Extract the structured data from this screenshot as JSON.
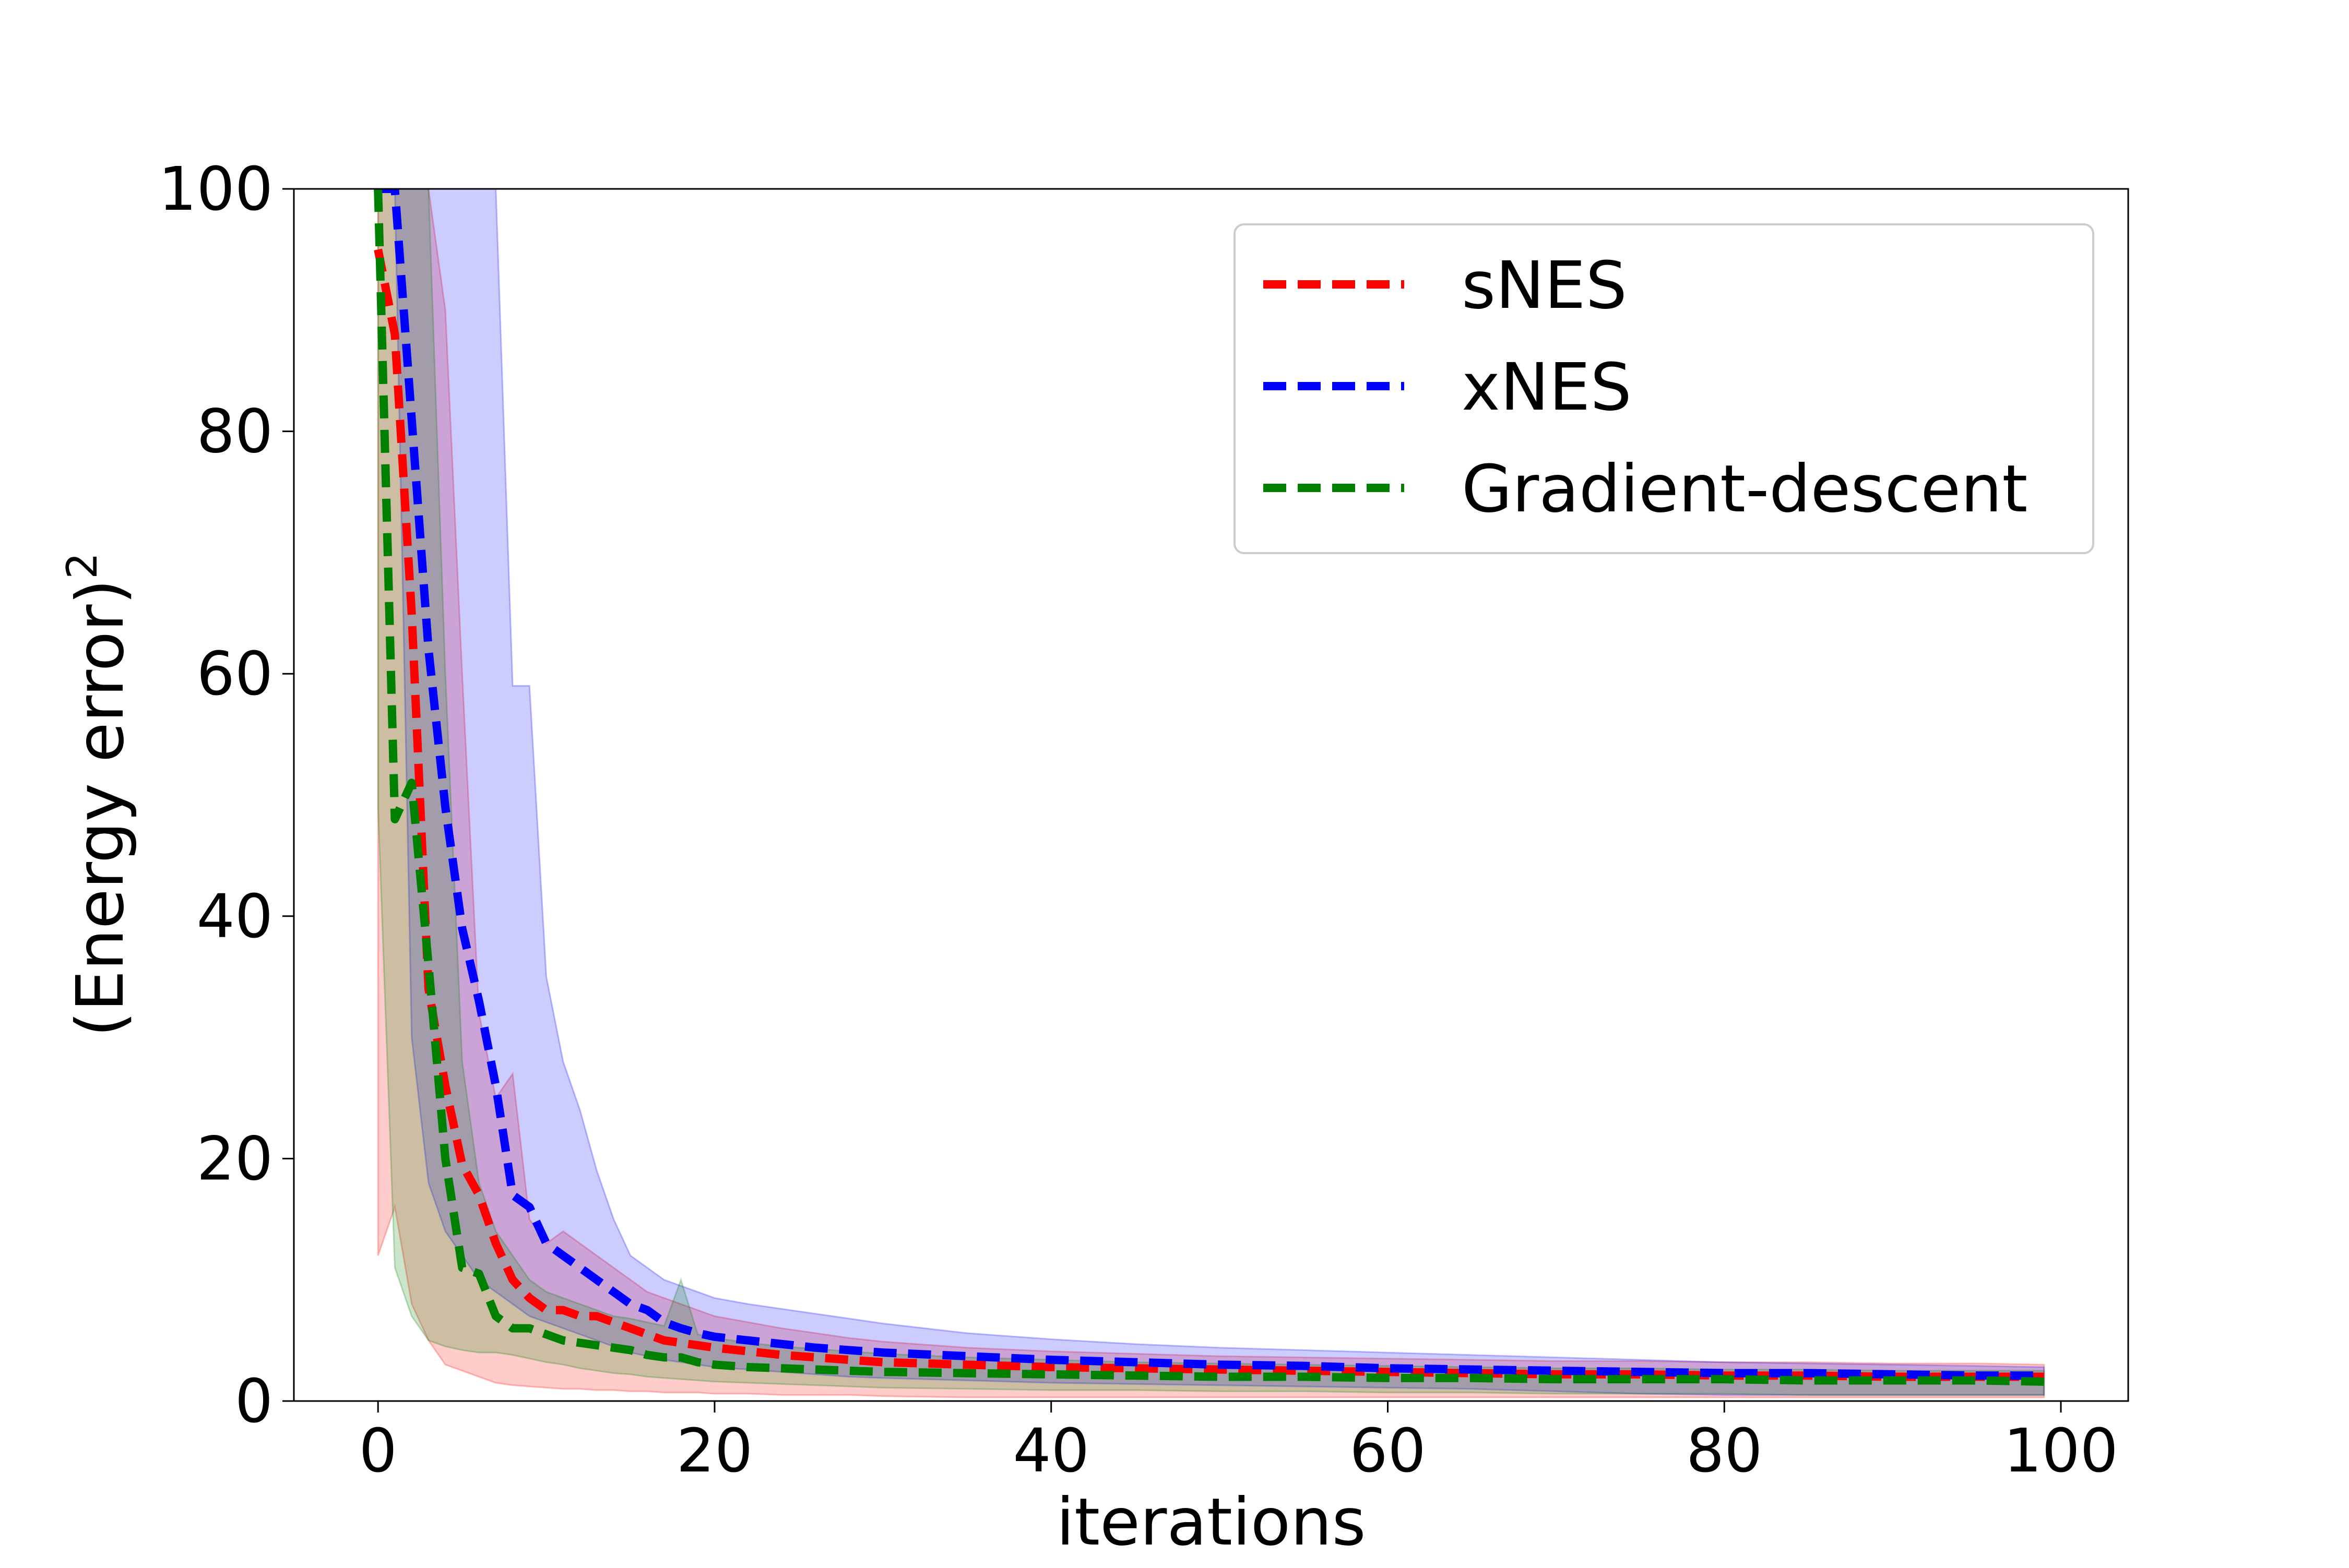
{
  "chart_data": {
    "type": "line",
    "title": "",
    "xlabel": "iterations",
    "ylabel": "(Energy error)",
    "ylabel_superscript": "2",
    "xlim": [
      -5,
      104
    ],
    "ylim": [
      0,
      100
    ],
    "xticks": [
      0,
      20,
      40,
      60,
      80,
      100
    ],
    "yticks": [
      0,
      20,
      40,
      60,
      80,
      100
    ],
    "xtick_labels": [
      "0",
      "20",
      "40",
      "60",
      "80",
      "100"
    ],
    "ytick_labels": [
      "0",
      "20",
      "40",
      "60",
      "80",
      "100"
    ],
    "grid": false,
    "legend_position": "top-right",
    "x": [
      0,
      1,
      2,
      3,
      4,
      5,
      6,
      7,
      8,
      9,
      10,
      11,
      12,
      13,
      14,
      15,
      16,
      17,
      18,
      19,
      20,
      22,
      24,
      26,
      28,
      30,
      35,
      40,
      45,
      50,
      55,
      60,
      65,
      70,
      75,
      80,
      85,
      90,
      95,
      99
    ],
    "series": [
      {
        "name": "sNES",
        "color": "#ff0000",
        "values": [
          95,
          88,
          65,
          34,
          26,
          19.5,
          17,
          13,
          10,
          8.5,
          7.5,
          7.5,
          7,
          7,
          6.5,
          6,
          5.5,
          5,
          4.8,
          4.6,
          4.4,
          4.1,
          3.8,
          3.6,
          3.4,
          3.2,
          3.0,
          2.8,
          2.7,
          2.6,
          2.5,
          2.4,
          2.3,
          2.2,
          2.2,
          2.1,
          2.1,
          2.0,
          2.0,
          2.0
        ],
        "band_low": [
          12,
          16,
          8,
          5,
          3,
          2.5,
          2,
          1.5,
          1.3,
          1.2,
          1.1,
          1.0,
          1.0,
          0.9,
          0.9,
          0.8,
          0.8,
          0.7,
          0.7,
          0.7,
          0.6,
          0.6,
          0.5,
          0.5,
          0.5,
          0.4,
          0.3,
          0.3,
          0.3,
          0.3,
          0.3,
          0.3,
          0.3,
          0.3,
          0.3,
          0.3,
          0.3,
          0.3,
          0.3,
          0.3
        ],
        "band_high": [
          100,
          100,
          100,
          100,
          90,
          60,
          32,
          25,
          27,
          15,
          13,
          14,
          13,
          12,
          11,
          10,
          9,
          8.5,
          8,
          7.5,
          7,
          6.5,
          6,
          5.6,
          5.2,
          4.9,
          4.4,
          4.1,
          3.9,
          3.7,
          3.6,
          3.5,
          3.4,
          3.3,
          3.3,
          3.2,
          3.2,
          3.1,
          3.1,
          3.0
        ]
      },
      {
        "name": "xNES",
        "color": "#0000ff",
        "values": [
          100,
          100,
          81,
          62,
          49,
          39,
          33,
          26,
          17,
          16,
          13,
          12,
          11,
          10,
          9,
          8,
          7.5,
          6.5,
          6,
          5.6,
          5.3,
          5.0,
          4.7,
          4.4,
          4.2,
          4.0,
          3.7,
          3.4,
          3.2,
          3.0,
          2.9,
          2.7,
          2.6,
          2.5,
          2.4,
          2.3,
          2.3,
          2.2,
          2.1,
          2.1
        ],
        "band_low": [
          100,
          100,
          30,
          18,
          14,
          12,
          10,
          9,
          8,
          7,
          6.5,
          6,
          5.5,
          5,
          4.5,
          4,
          3.7,
          3.4,
          3.2,
          3.0,
          2.8,
          2.6,
          2.4,
          2.2,
          2.0,
          1.9,
          1.7,
          1.5,
          1.4,
          1.3,
          1.2,
          1.1,
          1.0,
          0.8,
          0.6,
          0.5,
          0.5,
          0.5,
          0.5,
          0.5
        ],
        "band_high": [
          100,
          100,
          100,
          100,
          100,
          100,
          100,
          100,
          59,
          59,
          35,
          28,
          24,
          19,
          15,
          12,
          11,
          10,
          9.5,
          9,
          8.5,
          8,
          7.6,
          7.2,
          6.8,
          6.4,
          5.6,
          5.1,
          4.7,
          4.4,
          4.2,
          4.0,
          3.8,
          3.6,
          3.4,
          3.2,
          3.1,
          3.0,
          2.9,
          2.8
        ]
      },
      {
        "name": "Gradient-descent",
        "color": "#008000",
        "values": [
          100,
          48,
          51,
          36,
          20,
          11,
          10.5,
          7,
          6,
          6,
          5.5,
          5,
          4.8,
          4.6,
          4.4,
          4.2,
          3.8,
          3.6,
          3.6,
          3.2,
          3.0,
          2.8,
          2.7,
          2.6,
          2.5,
          2.4,
          2.3,
          2.2,
          2.1,
          2.0,
          2.0,
          1.9,
          1.9,
          1.8,
          1.8,
          1.8,
          1.7,
          1.7,
          1.7,
          1.6
        ],
        "band_low": [
          49,
          11,
          7,
          5,
          4.5,
          4.2,
          4,
          4,
          3.8,
          3.5,
          3.2,
          3,
          2.7,
          2.5,
          2.3,
          2.2,
          2.0,
          1.9,
          1.8,
          1.7,
          1.6,
          1.5,
          1.4,
          1.3,
          1.2,
          1.1,
          1.0,
          0.9,
          0.9,
          0.8,
          0.8,
          0.7,
          0.7,
          0.6,
          0.6,
          0.6,
          0.5,
          0.5,
          0.5,
          0.5
        ],
        "band_high": [
          100,
          100,
          100,
          100,
          60,
          28,
          18,
          14,
          12,
          10,
          9,
          8.5,
          8,
          7.5,
          7,
          6.8,
          6.5,
          6.2,
          10,
          5.5,
          5.2,
          4.8,
          4.5,
          4.3,
          4.1,
          3.9,
          3.6,
          3.4,
          3.2,
          3.1,
          3.0,
          2.9,
          2.8,
          2.7,
          2.7,
          2.6,
          2.6,
          2.5,
          2.5,
          2.5
        ]
      }
    ]
  }
}
